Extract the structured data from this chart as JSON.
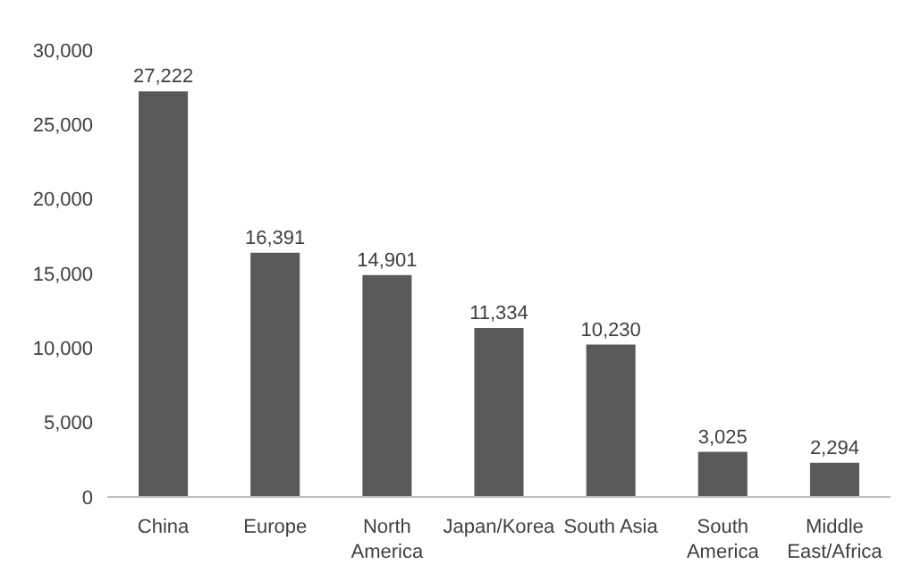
{
  "chart_data": {
    "type": "bar",
    "categories": [
      "China",
      "Europe",
      "North America",
      "Japan/Korea",
      "South Asia",
      "South America",
      "Middle East/Africa"
    ],
    "values": [
      27222,
      16391,
      14901,
      11334,
      10230,
      3025,
      2294
    ],
    "color": "#595959",
    "value_labels": [
      "27,222",
      "16,391",
      "14,901",
      "11,334",
      "10,230",
      "3,025",
      "2,294"
    ],
    "ylim": [
      0,
      30000
    ],
    "yticks": [
      0,
      {
        "value": 5000,
        "label": "5,000"
      },
      {
        "value": 10000,
        "label": "10,000"
      },
      {
        "value": 15000,
        "label": "15,000"
      },
      {
        "value": 20000,
        "label": "20,000"
      },
      {
        "value": 25000,
        "label": "25,000"
      },
      {
        "value": 30000,
        "label": "30,000"
      }
    ],
    "grid": false,
    "legend": false
  }
}
